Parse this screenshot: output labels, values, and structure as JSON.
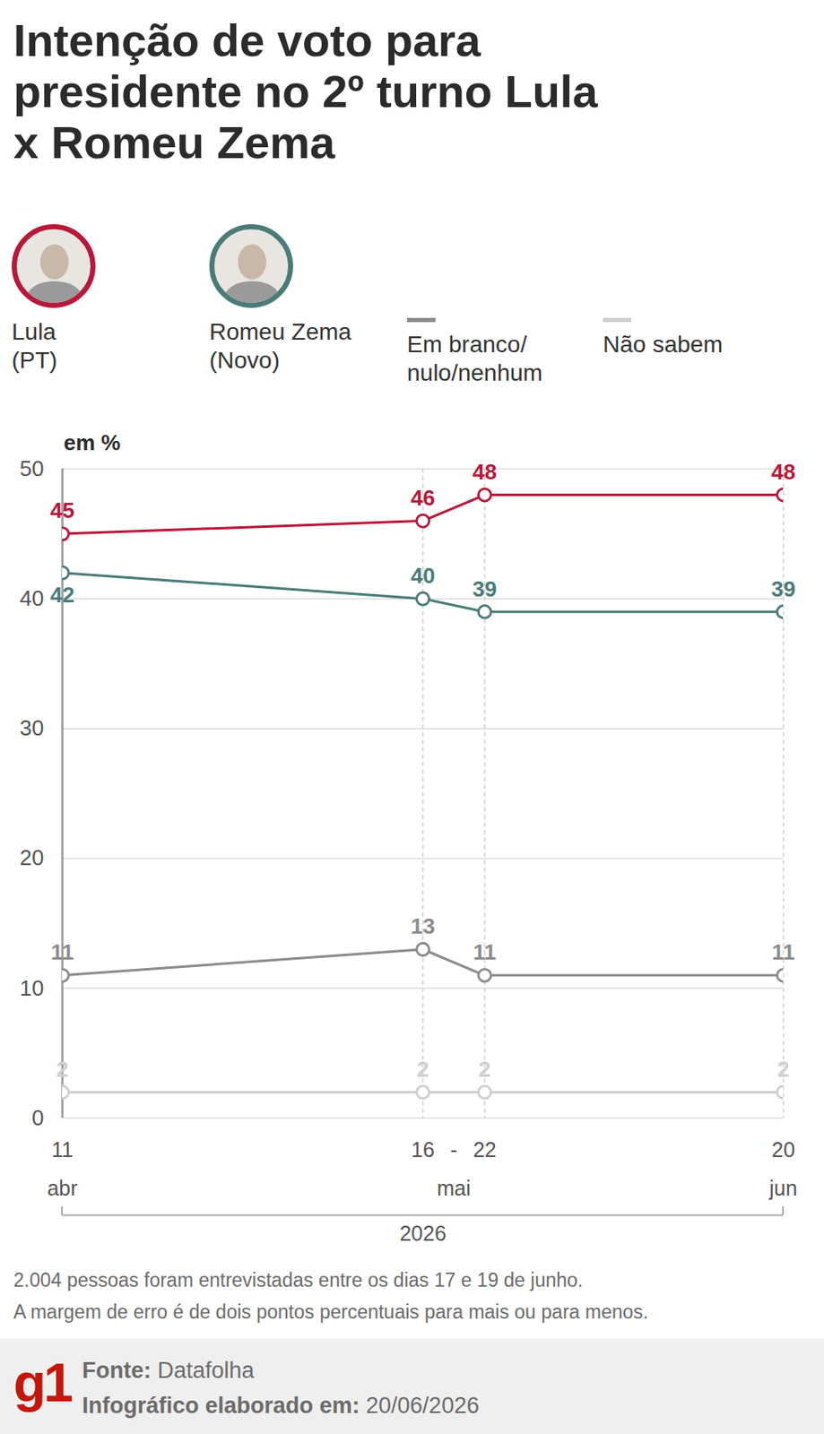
{
  "chart_data": {
    "type": "line",
    "title": "Intenção de voto para presidente no 2º turno Lula x Romeu Zema",
    "y_label": "em %",
    "x": [
      "2026-04-11",
      "2026-05-16",
      "2026-05-22",
      "2026-06-20"
    ],
    "xlim": [
      "2026-04-11",
      "2026-06-20"
    ],
    "xticks": [
      {
        "value": "2026-04-11",
        "label": "11"
      },
      {
        "value": "2026-05-16",
        "label": "16"
      },
      {
        "value": "2026-05-22",
        "label": "22"
      },
      {
        "value": "2026-06-20",
        "label": "20"
      }
    ],
    "x_months": [
      "abr",
      "mai",
      "mai",
      "jun"
    ],
    "x_range_separator": "-",
    "x_year": "2026",
    "ylim": [
      0,
      50
    ],
    "yticks": [
      0,
      10,
      20,
      30,
      40,
      50
    ],
    "grid": true,
    "legend": "top",
    "data_labels": true,
    "marker": "circle",
    "series": [
      {
        "name": "Lula (PT)",
        "color": "#b8183a",
        "values": [
          45,
          46,
          48,
          48
        ]
      },
      {
        "name": "Romeu Zema (Novo)",
        "color": "#4b7b78",
        "values": [
          42,
          40,
          39,
          39
        ]
      },
      {
        "name": "Em branco/nulo/nenhum",
        "color": "#8c8c8c",
        "values": [
          11,
          13,
          11,
          11
        ]
      },
      {
        "name": "Não sabem",
        "color": "#cfcfcf",
        "values": [
          2,
          2,
          2,
          2
        ]
      }
    ],
    "notes": [
      "2.004 pessoas foram entrevistadas entre os dias 17 e 19 de junho.",
      "A margem de erro é de dois pontos percentuais para mais ou para menos."
    ],
    "source_label": "Fonte:",
    "source": "Datafolha",
    "made_label": "Infográfico elaborado em:",
    "made_date": "20/06/2026",
    "logo": "g1"
  }
}
